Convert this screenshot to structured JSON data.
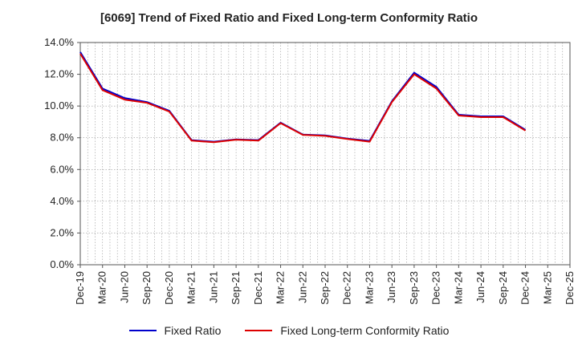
{
  "chart_data": {
    "type": "line",
    "title": "[6069]  Trend of Fixed Ratio and Fixed Long-term Conformity Ratio",
    "xlabel": "",
    "ylabel": "",
    "ylim": [
      0,
      14
    ],
    "y_ticks": [
      "0.0%",
      "2.0%",
      "4.0%",
      "6.0%",
      "8.0%",
      "10.0%",
      "12.0%",
      "14.0%"
    ],
    "x_ticks": [
      "Dec-19",
      "Mar-20",
      "Jun-20",
      "Sep-20",
      "Dec-20",
      "Mar-21",
      "Jun-21",
      "Sep-21",
      "Dec-21",
      "Mar-22",
      "Jun-22",
      "Sep-22",
      "Dec-22",
      "Mar-23",
      "Jun-23",
      "Sep-23",
      "Dec-23",
      "Mar-24",
      "Jun-24",
      "Sep-24",
      "Dec-24",
      "Mar-25",
      "Dec-25"
    ],
    "grid": true,
    "legend_position": "bottom",
    "series": [
      {
        "name": "Fixed Ratio",
        "color": "#0000cc",
        "values": [
          13.4,
          11.1,
          10.5,
          10.25,
          9.7,
          7.85,
          7.75,
          7.9,
          7.85,
          8.95,
          8.2,
          8.15,
          7.95,
          7.8,
          10.3,
          12.1,
          11.2,
          9.45,
          9.35,
          9.35,
          8.5
        ]
      },
      {
        "name": "Fixed Long-term Conformity Ratio",
        "color": "#dd0000",
        "values": [
          13.3,
          11.0,
          10.4,
          10.2,
          9.65,
          7.82,
          7.72,
          7.88,
          7.82,
          8.92,
          8.18,
          8.12,
          7.92,
          7.75,
          10.25,
          12.0,
          11.1,
          9.4,
          9.3,
          9.3,
          8.45
        ]
      }
    ]
  }
}
